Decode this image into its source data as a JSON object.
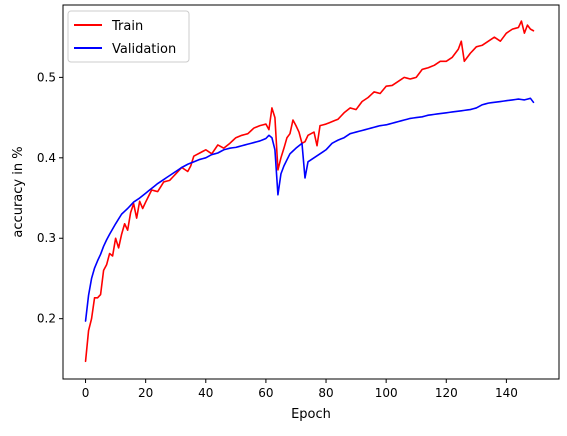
{
  "chart_data": {
    "type": "line",
    "title": "",
    "xlabel": "Epoch",
    "ylabel": "accuracy in %",
    "xlim": [
      -7.5,
      157.5
    ],
    "ylim": [
      0.125,
      0.59
    ],
    "xticks": [
      0,
      20,
      40,
      60,
      80,
      100,
      120,
      140
    ],
    "yticks": [
      0.2,
      0.3,
      0.4,
      0.5
    ],
    "grid": false,
    "legend_position": "upper-left",
    "series": [
      {
        "name": "Train",
        "color": "#ff0000",
        "anchors": [
          [
            0,
            0.147
          ],
          [
            1,
            0.185
          ],
          [
            2,
            0.2
          ],
          [
            3,
            0.226
          ],
          [
            4,
            0.226
          ],
          [
            5,
            0.23
          ],
          [
            6,
            0.26
          ],
          [
            7,
            0.267
          ],
          [
            8,
            0.281
          ],
          [
            9,
            0.278
          ],
          [
            10,
            0.3
          ],
          [
            11,
            0.288
          ],
          [
            12,
            0.305
          ],
          [
            13,
            0.318
          ],
          [
            14,
            0.31
          ],
          [
            15,
            0.332
          ],
          [
            16,
            0.343
          ],
          [
            17,
            0.325
          ],
          [
            18,
            0.346
          ],
          [
            19,
            0.337
          ],
          [
            20,
            0.345
          ],
          [
            22,
            0.36
          ],
          [
            24,
            0.358
          ],
          [
            26,
            0.37
          ],
          [
            28,
            0.372
          ],
          [
            30,
            0.38
          ],
          [
            32,
            0.388
          ],
          [
            34,
            0.383
          ],
          [
            35,
            0.39
          ],
          [
            36,
            0.402
          ],
          [
            38,
            0.406
          ],
          [
            40,
            0.41
          ],
          [
            42,
            0.405
          ],
          [
            44,
            0.416
          ],
          [
            46,
            0.412
          ],
          [
            48,
            0.418
          ],
          [
            50,
            0.425
          ],
          [
            52,
            0.428
          ],
          [
            54,
            0.43
          ],
          [
            56,
            0.437
          ],
          [
            58,
            0.44
          ],
          [
            60,
            0.442
          ],
          [
            61,
            0.435
          ],
          [
            62,
            0.462
          ],
          [
            63,
            0.45
          ],
          [
            64,
            0.385
          ],
          [
            65,
            0.4
          ],
          [
            66,
            0.412
          ],
          [
            67,
            0.425
          ],
          [
            68,
            0.43
          ],
          [
            69,
            0.447
          ],
          [
            70,
            0.44
          ],
          [
            71,
            0.432
          ],
          [
            72,
            0.418
          ],
          [
            73,
            0.42
          ],
          [
            74,
            0.428
          ],
          [
            76,
            0.432
          ],
          [
            77,
            0.415
          ],
          [
            78,
            0.44
          ],
          [
            80,
            0.442
          ],
          [
            82,
            0.445
          ],
          [
            84,
            0.448
          ],
          [
            86,
            0.456
          ],
          [
            88,
            0.462
          ],
          [
            90,
            0.46
          ],
          [
            92,
            0.47
          ],
          [
            94,
            0.475
          ],
          [
            96,
            0.482
          ],
          [
            98,
            0.48
          ],
          [
            100,
            0.489
          ],
          [
            102,
            0.49
          ],
          [
            104,
            0.495
          ],
          [
            106,
            0.5
          ],
          [
            108,
            0.498
          ],
          [
            110,
            0.5
          ],
          [
            112,
            0.51
          ],
          [
            114,
            0.512
          ],
          [
            116,
            0.515
          ],
          [
            118,
            0.52
          ],
          [
            120,
            0.52
          ],
          [
            122,
            0.525
          ],
          [
            124,
            0.535
          ],
          [
            125,
            0.545
          ],
          [
            126,
            0.52
          ],
          [
            128,
            0.53
          ],
          [
            130,
            0.538
          ],
          [
            132,
            0.54
          ],
          [
            134,
            0.545
          ],
          [
            136,
            0.55
          ],
          [
            138,
            0.545
          ],
          [
            140,
            0.555
          ],
          [
            142,
            0.56
          ],
          [
            144,
            0.562
          ],
          [
            145,
            0.57
          ],
          [
            146,
            0.555
          ],
          [
            147,
            0.565
          ],
          [
            148,
            0.56
          ],
          [
            149,
            0.558
          ]
        ]
      },
      {
        "name": "Validation",
        "color": "#0000ff",
        "anchors": [
          [
            0,
            0.197
          ],
          [
            1,
            0.229
          ],
          [
            2,
            0.25
          ],
          [
            3,
            0.263
          ],
          [
            4,
            0.272
          ],
          [
            5,
            0.28
          ],
          [
            6,
            0.29
          ],
          [
            7,
            0.298
          ],
          [
            8,
            0.305
          ],
          [
            10,
            0.318
          ],
          [
            12,
            0.33
          ],
          [
            14,
            0.337
          ],
          [
            16,
            0.345
          ],
          [
            18,
            0.35
          ],
          [
            20,
            0.356
          ],
          [
            22,
            0.362
          ],
          [
            24,
            0.368
          ],
          [
            26,
            0.373
          ],
          [
            28,
            0.378
          ],
          [
            30,
            0.383
          ],
          [
            32,
            0.388
          ],
          [
            34,
            0.392
          ],
          [
            36,
            0.395
          ],
          [
            38,
            0.398
          ],
          [
            40,
            0.4
          ],
          [
            42,
            0.404
          ],
          [
            44,
            0.406
          ],
          [
            46,
            0.41
          ],
          [
            48,
            0.412
          ],
          [
            50,
            0.413
          ],
          [
            52,
            0.415
          ],
          [
            54,
            0.417
          ],
          [
            56,
            0.419
          ],
          [
            58,
            0.421
          ],
          [
            60,
            0.424
          ],
          [
            61,
            0.428
          ],
          [
            62,
            0.425
          ],
          [
            63,
            0.41
          ],
          [
            64,
            0.354
          ],
          [
            65,
            0.38
          ],
          [
            66,
            0.39
          ],
          [
            68,
            0.405
          ],
          [
            70,
            0.412
          ],
          [
            72,
            0.418
          ],
          [
            73,
            0.375
          ],
          [
            74,
            0.395
          ],
          [
            76,
            0.4
          ],
          [
            78,
            0.405
          ],
          [
            80,
            0.41
          ],
          [
            82,
            0.418
          ],
          [
            84,
            0.422
          ],
          [
            86,
            0.425
          ],
          [
            88,
            0.43
          ],
          [
            90,
            0.432
          ],
          [
            92,
            0.434
          ],
          [
            94,
            0.436
          ],
          [
            96,
            0.438
          ],
          [
            98,
            0.44
          ],
          [
            100,
            0.441
          ],
          [
            102,
            0.443
          ],
          [
            104,
            0.445
          ],
          [
            106,
            0.447
          ],
          [
            108,
            0.449
          ],
          [
            110,
            0.45
          ],
          [
            112,
            0.451
          ],
          [
            114,
            0.453
          ],
          [
            116,
            0.454
          ],
          [
            118,
            0.455
          ],
          [
            120,
            0.456
          ],
          [
            122,
            0.457
          ],
          [
            124,
            0.458
          ],
          [
            126,
            0.459
          ],
          [
            128,
            0.46
          ],
          [
            130,
            0.462
          ],
          [
            132,
            0.466
          ],
          [
            134,
            0.468
          ],
          [
            136,
            0.469
          ],
          [
            138,
            0.47
          ],
          [
            140,
            0.471
          ],
          [
            142,
            0.472
          ],
          [
            144,
            0.473
          ],
          [
            146,
            0.472
          ],
          [
            148,
            0.474
          ],
          [
            149,
            0.469
          ]
        ]
      }
    ]
  }
}
